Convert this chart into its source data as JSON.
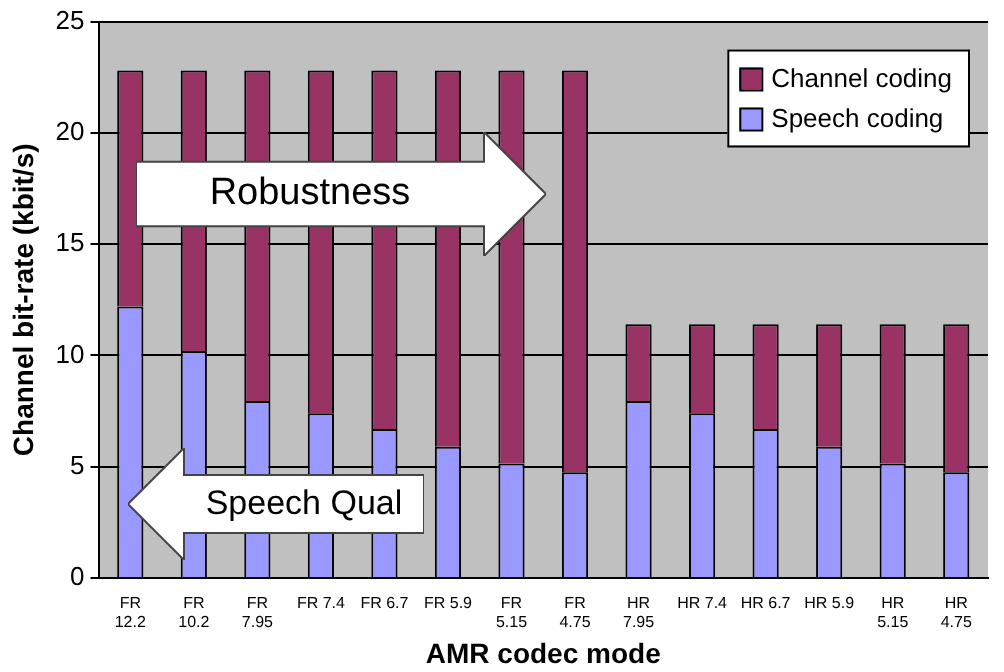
{
  "chart_data": {
    "type": "bar",
    "stacked": true,
    "xlabel": "AMR codec mode",
    "ylabel": "Channel bit-rate (kbit/s)",
    "categories": [
      "FR\n12.2",
      "FR\n10.2",
      "FR\n7.95",
      "FR 7.4",
      "FR 6.7",
      "FR 5.9",
      "FR\n5.15",
      "FR\n4.75",
      "HR\n7.95",
      "HR 7.4",
      "HR 6.7",
      "HR 5.9",
      "HR\n5.15",
      "HR\n4.75"
    ],
    "series": [
      {
        "name": "Speech coding",
        "color": "#9999ff",
        "values": [
          12.2,
          10.2,
          7.95,
          7.4,
          6.7,
          5.9,
          5.15,
          4.75,
          7.95,
          7.4,
          6.7,
          5.9,
          5.15,
          4.75
        ]
      },
      {
        "name": "Channel coding",
        "color": "#993366",
        "values": [
          10.6,
          12.6,
          14.85,
          15.4,
          16.1,
          16.9,
          17.65,
          18.05,
          3.45,
          4.0,
          4.7,
          5.5,
          6.25,
          6.65
        ]
      }
    ],
    "ylim": [
      0,
      25
    ],
    "yticks": [
      0,
      5,
      10,
      15,
      20,
      25
    ],
    "grid": "y",
    "legend": "top right",
    "annotations": [
      "Robustness",
      "Speech Qual"
    ]
  }
}
